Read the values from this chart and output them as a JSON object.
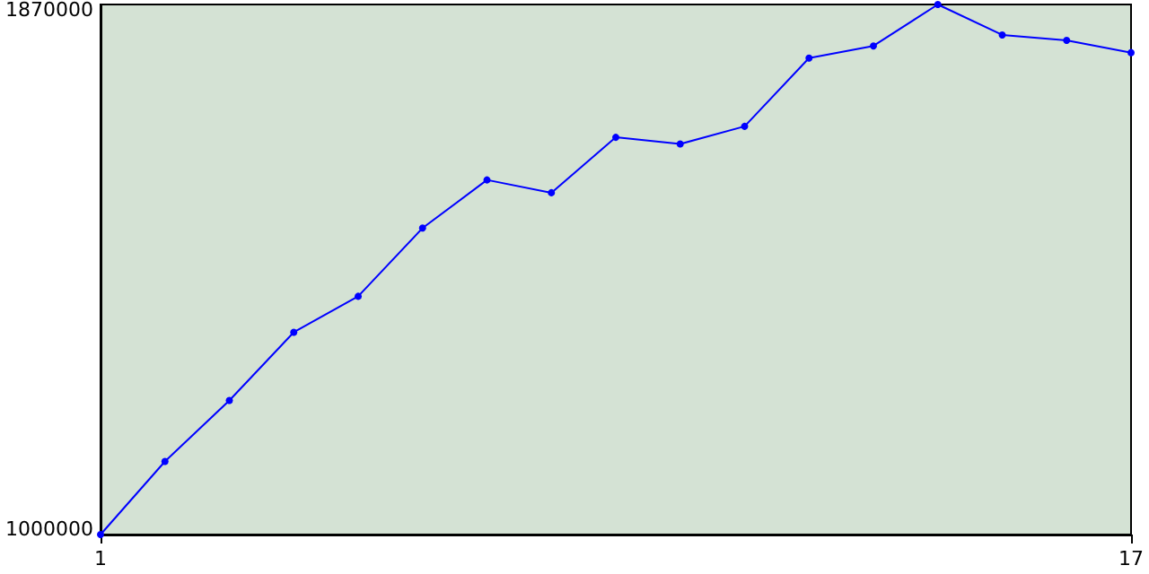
{
  "chart_data": {
    "type": "line",
    "x": [
      1,
      2,
      3,
      4,
      5,
      6,
      7,
      8,
      9,
      10,
      11,
      12,
      13,
      14,
      15,
      16,
      17
    ],
    "series": [
      {
        "color": "#0000ff",
        "values": [
          1000000,
          1120000,
          1220000,
          1332000,
          1391000,
          1503000,
          1582000,
          1561000,
          1652000,
          1641000,
          1670000,
          1782000,
          1802000,
          1870000,
          1820000,
          1811000,
          1791000
        ]
      }
    ],
    "xlim": [
      1,
      17
    ],
    "xticks": [
      1,
      17
    ],
    "ylim": [
      1000000,
      1870000
    ],
    "yticks": [
      1000000,
      1870000
    ],
    "grid": false,
    "marker": "circle",
    "line_style": "solid"
  }
}
